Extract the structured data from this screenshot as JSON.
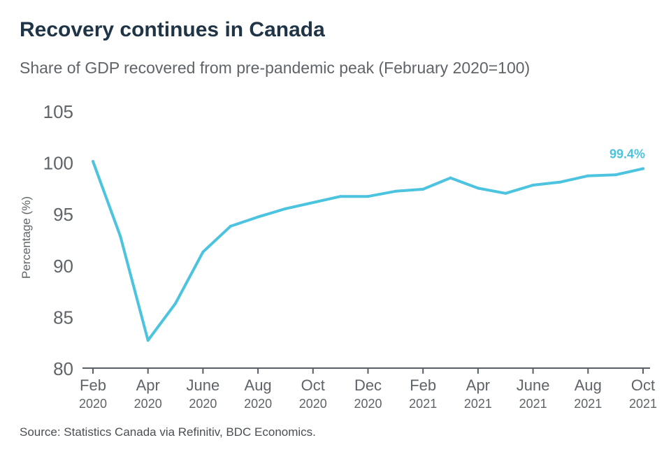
{
  "header": {
    "title": "Recovery continues in Canada",
    "subtitle": "Share of GDP recovered from pre-pandemic peak (February 2020=100)"
  },
  "footer": {
    "source": "Source: Statistics Canada via Refinitiv, BDC Economics."
  },
  "colors": {
    "line": "#4cc3df",
    "axis": "#5a5f64",
    "tick_text": "#5f6469",
    "title": "#1f3447"
  },
  "chart_data": {
    "type": "line",
    "title": "Recovery continues in Canada",
    "subtitle": "Share of GDP recovered from pre-pandemic peak (February 2020=100)",
    "xlabel": "",
    "ylabel": "Percentage (%)",
    "ylim": [
      80,
      105
    ],
    "yticks": [
      80,
      85,
      90,
      95,
      100,
      105
    ],
    "x": [
      "2020-02",
      "2020-03",
      "2020-04",
      "2020-05",
      "2020-06",
      "2020-07",
      "2020-08",
      "2020-09",
      "2020-10",
      "2020-11",
      "2020-12",
      "2021-01",
      "2021-02",
      "2021-03",
      "2021-04",
      "2021-05",
      "2021-06",
      "2021-07",
      "2021-08",
      "2021-09",
      "2021-10"
    ],
    "x_tick_labels": [
      {
        "month": "Feb",
        "year": "2020"
      },
      {
        "month": "Apr",
        "year": "2020"
      },
      {
        "month": "June",
        "year": "2020"
      },
      {
        "month": "Aug",
        "year": "2020"
      },
      {
        "month": "Oct",
        "year": "2020"
      },
      {
        "month": "Dec",
        "year": "2020"
      },
      {
        "month": "Feb",
        "year": "2021"
      },
      {
        "month": "Apr",
        "year": "2021"
      },
      {
        "month": "June",
        "year": "2021"
      },
      {
        "month": "Aug",
        "year": "2021"
      },
      {
        "month": "Oct",
        "year": "2021"
      }
    ],
    "series": [
      {
        "values": [
          100.1,
          92.8,
          82.7,
          86.3,
          91.3,
          93.8,
          94.7,
          95.5,
          96.1,
          96.7,
          96.7,
          97.2,
          97.4,
          98.5,
          97.5,
          97.0,
          97.8,
          98.1,
          98.7,
          98.8,
          99.4
        ]
      }
    ],
    "annotations": [
      {
        "text": "99.4%",
        "x": "2021-10",
        "y": 99.4
      }
    ],
    "grid": false,
    "legend": "none"
  }
}
